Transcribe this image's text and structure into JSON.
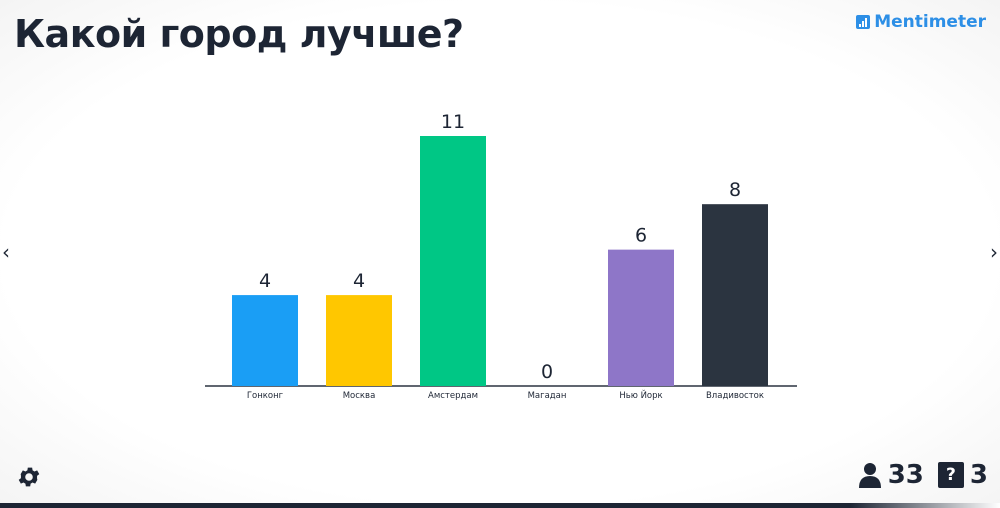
{
  "slide": {
    "title": "Какой город лучше?",
    "brand": "Mentimeter"
  },
  "navigation": {
    "prev_icon": "chevron-left-icon",
    "next_icon": "chevron-right-icon",
    "prev_glyph": "‹",
    "next_glyph": "›"
  },
  "footer": {
    "settings_icon": "gear-icon",
    "participants_icon": "person-icon",
    "participants_count": "33",
    "questions_icon": "question-box-icon",
    "questions_glyph": "?",
    "questions_count": "3"
  },
  "chart_data": {
    "type": "bar",
    "title": "Какой город лучше?",
    "categories": [
      "Гонконг",
      "Москва",
      "Амстердам",
      "Магадан",
      "Нью Йорк",
      "Владивосток"
    ],
    "values": [
      4,
      4,
      11,
      0,
      6,
      8
    ],
    "colors": [
      "#1a9ef5",
      "#ffc700",
      "#00c785",
      "#ffffff",
      "#8e76c8",
      "#2b3440"
    ],
    "ylim": [
      0,
      11
    ],
    "grid": false,
    "legend": "none"
  }
}
